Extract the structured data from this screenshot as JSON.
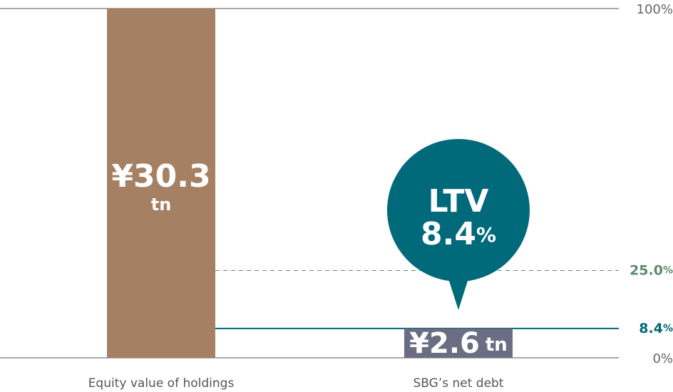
{
  "chart_data": {
    "type": "bar",
    "categories": [
      "Equity value of holdings",
      "SBG’s net debt"
    ],
    "values": [
      100,
      8.4
    ],
    "colors": [
      "#a58063",
      "#6b6e82"
    ],
    "bar_labels": [
      {
        "amount": "¥30.3",
        "unit": "tn"
      },
      {
        "amount": "¥2.6",
        "unit": "tn"
      }
    ],
    "ylim": [
      0,
      100
    ],
    "yticks": [
      {
        "value": 0,
        "label": "0%"
      },
      {
        "value": 100,
        "label": "100%"
      }
    ],
    "reference_lines": [
      {
        "value": 25,
        "label": "25.0",
        "unit": "%",
        "color": "#5b8c6c",
        "style": "dashed"
      },
      {
        "value": 8.4,
        "label": "8.4",
        "unit": "%",
        "color": "#006878",
        "style": "solid"
      }
    ],
    "callout": {
      "title": "LTV",
      "value": 8.4,
      "unit": "%",
      "color": "#00697a"
    }
  }
}
